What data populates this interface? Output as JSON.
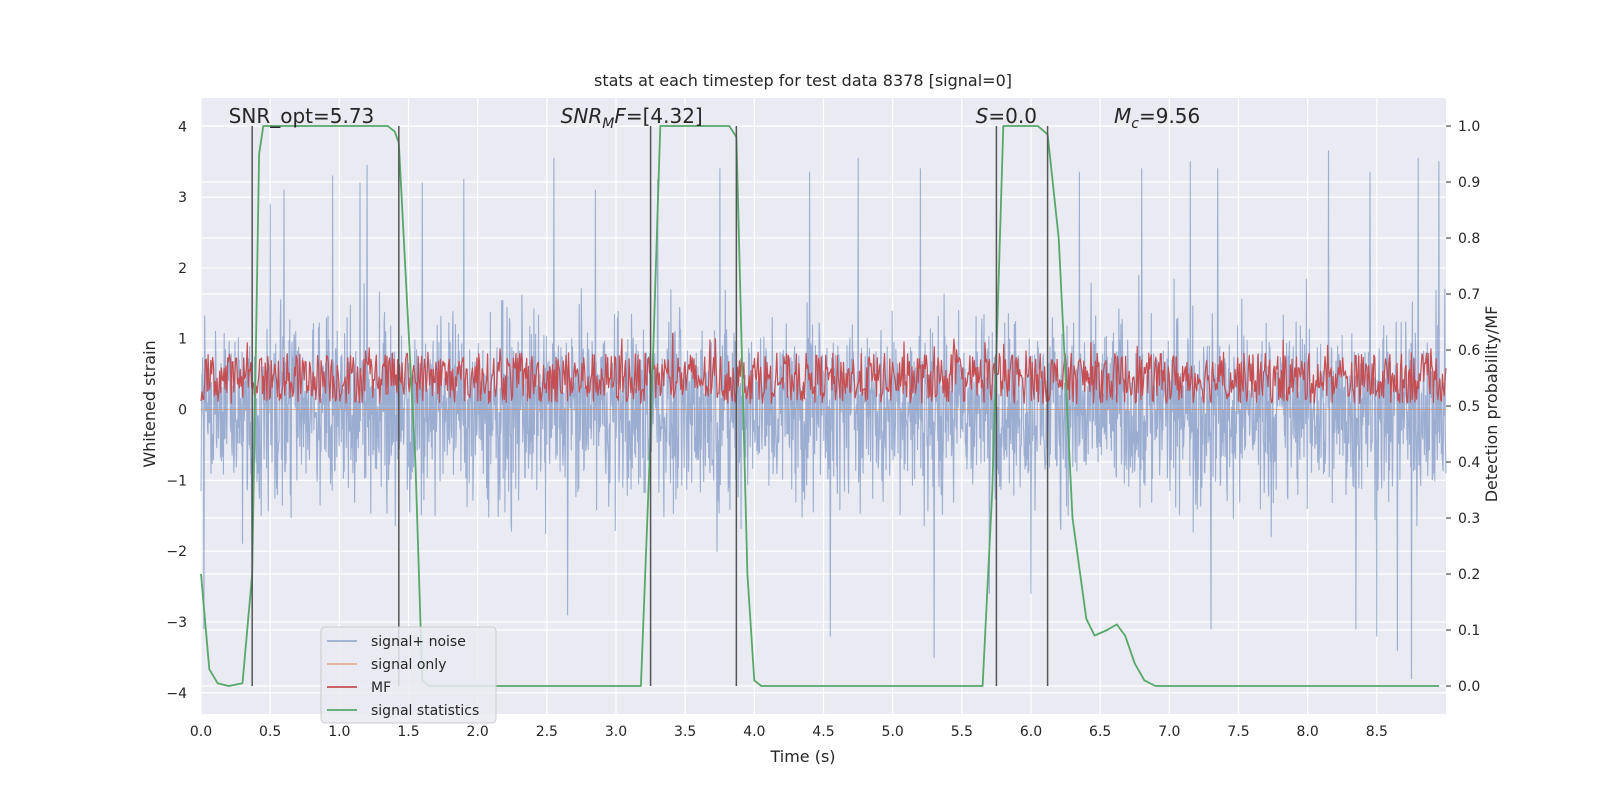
{
  "chart_data": {
    "type": "line",
    "title": "stats at each timestep for test data 8378 [signal=0]",
    "xlabel": "Time (s)",
    "ylabel_left": "Whitened strain",
    "ylabel_right": "Detection probability/MF",
    "xlim": [
      0,
      9.0
    ],
    "ylim_left": [
      -4.3,
      4.4
    ],
    "ylim_right": [
      -0.05,
      1.05
    ],
    "x_ticks": [
      "0.0",
      "0.5",
      "1.0",
      "1.5",
      "2.0",
      "2.5",
      "3.0",
      "3.5",
      "4.0",
      "4.5",
      "5.0",
      "5.5",
      "6.0",
      "6.5",
      "7.0",
      "7.5",
      "8.0",
      "8.5"
    ],
    "y_ticks_left": [
      "4",
      "3",
      "2",
      "1",
      "0",
      "−1",
      "−2",
      "−3",
      "−4"
    ],
    "y_ticks_right": [
      "1.0",
      "0.9",
      "0.8",
      "0.7",
      "0.6",
      "0.5",
      "0.4",
      "0.3",
      "0.2",
      "0.1",
      "0.0"
    ],
    "grid": true,
    "legend_position": "lower-left",
    "annotations": [
      {
        "label": "SNR_opt=5.73",
        "x": 0.2
      },
      {
        "label": "SNR_MF=[4.32]",
        "x": 2.6
      },
      {
        "label": "S=0.0",
        "x": 5.6
      },
      {
        "label": "M_c=9.56",
        "x": 6.6
      }
    ],
    "vertical_lines": [
      0.37,
      1.43,
      3.25,
      3.87,
      5.75,
      6.12
    ],
    "series": [
      {
        "name": "signal+ noise",
        "axis": "left",
        "color": "#4c72b0",
        "style": "noise",
        "center": 0.0,
        "spread": 1.5,
        "peaks": [
          {
            "x": 0.02,
            "y": 3.55
          },
          {
            "x": 0.5,
            "y": 2.9
          },
          {
            "x": 0.6,
            "y": 3.1
          },
          {
            "x": 0.95,
            "y": 3.3
          },
          {
            "x": 1.15,
            "y": 3.2
          },
          {
            "x": 1.2,
            "y": 3.45
          },
          {
            "x": 1.6,
            "y": 3.2
          },
          {
            "x": 1.9,
            "y": 3.25
          },
          {
            "x": 2.55,
            "y": 3.55
          },
          {
            "x": 2.85,
            "y": 3.1
          },
          {
            "x": 3.3,
            "y": 3.25
          },
          {
            "x": 3.75,
            "y": 3.4
          },
          {
            "x": 4.4,
            "y": 3.35
          },
          {
            "x": 4.75,
            "y": 3.55
          },
          {
            "x": 5.2,
            "y": 3.4
          },
          {
            "x": 6.35,
            "y": 3.35
          },
          {
            "x": 6.8,
            "y": 3.4
          },
          {
            "x": 7.15,
            "y": 3.5
          },
          {
            "x": 7.35,
            "y": 3.4
          },
          {
            "x": 8.15,
            "y": 3.65
          },
          {
            "x": 8.45,
            "y": 3.35
          },
          {
            "x": 8.8,
            "y": 3.55
          },
          {
            "x": 8.95,
            "y": 3.5
          }
        ],
        "troughs": [
          {
            "x": 0.02,
            "y": -3.1
          },
          {
            "x": 0.37,
            "y": -3.0
          },
          {
            "x": 2.65,
            "y": -2.9
          },
          {
            "x": 4.55,
            "y": -3.2
          },
          {
            "x": 5.3,
            "y": -3.5
          },
          {
            "x": 5.7,
            "y": -2.6
          },
          {
            "x": 6.0,
            "y": -2.6
          },
          {
            "x": 7.3,
            "y": -3.1
          },
          {
            "x": 8.35,
            "y": -3.1
          },
          {
            "x": 8.65,
            "y": -3.4
          },
          {
            "x": 8.75,
            "y": -3.8
          },
          {
            "x": 8.5,
            "y": -3.2
          }
        ]
      },
      {
        "name": "signal only",
        "axis": "left",
        "color": "#dd8452",
        "style": "flat",
        "values": [
          {
            "x": 0.0,
            "y": 0.0
          },
          {
            "x": 9.0,
            "y": 0.0
          }
        ]
      },
      {
        "name": "MF",
        "axis": "right",
        "color": "#c44e52",
        "style": "noise",
        "center": 0.545,
        "spread": 0.045,
        "peaks": [
          {
            "x": 3.04,
            "y": 0.62
          },
          {
            "x": 5.45,
            "y": 0.6
          },
          {
            "x": 5.8,
            "y": 0.61
          },
          {
            "x": 2.66,
            "y": 0.595
          },
          {
            "x": 8.75,
            "y": 0.595
          }
        ],
        "troughs": []
      },
      {
        "name": "signal statistics",
        "axis": "right",
        "color": "#55a868",
        "style": "line",
        "values": [
          {
            "x": 0.0,
            "y": 0.2
          },
          {
            "x": 0.06,
            "y": 0.03
          },
          {
            "x": 0.12,
            "y": 0.005
          },
          {
            "x": 0.2,
            "y": 0.0
          },
          {
            "x": 0.3,
            "y": 0.005
          },
          {
            "x": 0.37,
            "y": 0.2
          },
          {
            "x": 0.42,
            "y": 0.95
          },
          {
            "x": 0.45,
            "y": 1.0
          },
          {
            "x": 1.35,
            "y": 1.0
          },
          {
            "x": 1.4,
            "y": 0.99
          },
          {
            "x": 1.43,
            "y": 0.97
          },
          {
            "x": 1.55,
            "y": 0.4
          },
          {
            "x": 1.6,
            "y": 0.01
          },
          {
            "x": 1.65,
            "y": 0.0
          },
          {
            "x": 3.18,
            "y": 0.0
          },
          {
            "x": 3.25,
            "y": 0.45
          },
          {
            "x": 3.32,
            "y": 1.0
          },
          {
            "x": 3.82,
            "y": 1.0
          },
          {
            "x": 3.87,
            "y": 0.98
          },
          {
            "x": 3.95,
            "y": 0.2
          },
          {
            "x": 4.0,
            "y": 0.01
          },
          {
            "x": 4.05,
            "y": 0.0
          },
          {
            "x": 5.65,
            "y": 0.0
          },
          {
            "x": 5.72,
            "y": 0.35
          },
          {
            "x": 5.8,
            "y": 1.0
          },
          {
            "x": 6.05,
            "y": 1.0
          },
          {
            "x": 6.12,
            "y": 0.985
          },
          {
            "x": 6.2,
            "y": 0.8
          },
          {
            "x": 6.3,
            "y": 0.3
          },
          {
            "x": 6.4,
            "y": 0.12
          },
          {
            "x": 6.46,
            "y": 0.09
          },
          {
            "x": 6.55,
            "y": 0.1
          },
          {
            "x": 6.62,
            "y": 0.11
          },
          {
            "x": 6.68,
            "y": 0.09
          },
          {
            "x": 6.75,
            "y": 0.04
          },
          {
            "x": 6.82,
            "y": 0.01
          },
          {
            "x": 6.9,
            "y": 0.0
          },
          {
            "x": 8.95,
            "y": 0.0
          }
        ]
      }
    ]
  }
}
